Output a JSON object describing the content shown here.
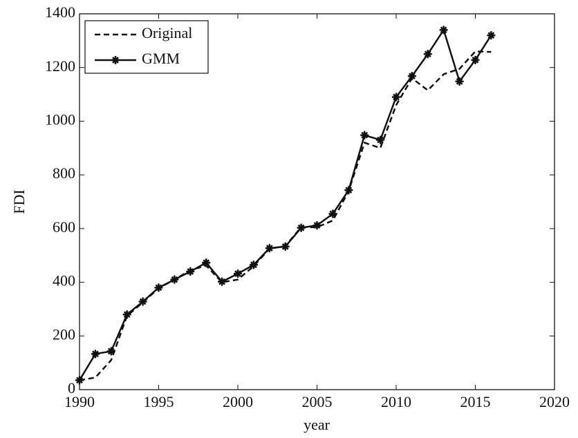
{
  "chart_data": {
    "type": "line",
    "x_label": "year",
    "y_label": "FDI",
    "x": [
      1990,
      1991,
      1992,
      1993,
      1994,
      1995,
      1996,
      1997,
      1998,
      1999,
      2000,
      2001,
      2002,
      2003,
      2004,
      2005,
      2006,
      2007,
      2008,
      2009,
      2010,
      2011,
      2012,
      2013,
      2014,
      2015,
      2016
    ],
    "series": [
      {
        "name": "Original",
        "color": "#111111",
        "linestyle": "dashed",
        "marker": "none",
        "values": [
          35,
          45,
          110,
          275,
          325,
          378,
          410,
          445,
          462,
          400,
          410,
          460,
          525,
          535,
          605,
          605,
          630,
          740,
          920,
          900,
          1060,
          1160,
          1115,
          1175,
          1195,
          1260,
          1258
        ]
      },
      {
        "name": "GMM",
        "color": "#111111",
        "linestyle": "solid",
        "marker": "star",
        "values": [
          35,
          133,
          143,
          280,
          328,
          380,
          410,
          440,
          473,
          402,
          432,
          465,
          527,
          533,
          603,
          612,
          655,
          743,
          948,
          930,
          1090,
          1168,
          1250,
          1340,
          1148,
          1228,
          1320
        ]
      }
    ],
    "xlim": [
      1990,
      2020
    ],
    "xticks": [
      1990,
      1995,
      2000,
      2005,
      2010,
      2015,
      2020
    ],
    "ylim": [
      0,
      1400
    ],
    "yticks": [
      0,
      200,
      400,
      600,
      800,
      1000,
      1200,
      1400
    ],
    "grid": false,
    "legend": "upper left"
  }
}
